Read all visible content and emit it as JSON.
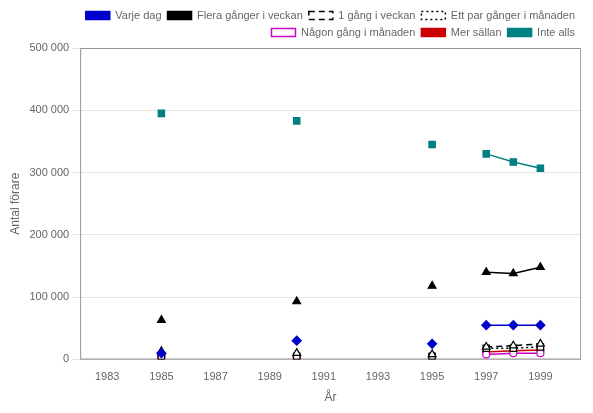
{
  "chart_data": {
    "type": "line",
    "x_label": "År",
    "y_label": "Antal förare",
    "x": [
      1985,
      1990,
      1995,
      1997,
      1998,
      1999
    ],
    "xlim": [
      1982.0,
      2000.5
    ],
    "xticks": [
      1983,
      1985,
      1987,
      1989,
      1991,
      1993,
      1995,
      1997,
      1999
    ],
    "ylim": [
      0,
      500000
    ],
    "yticks": [
      0,
      {
        "value": 100000,
        "label": "100 000"
      },
      {
        "value": 200000,
        "label": "200 000"
      },
      {
        "value": 300000,
        "label": "300 000"
      },
      {
        "value": 400000,
        "label": "400 000"
      },
      {
        "value": 500000,
        "label": "500 000"
      }
    ],
    "grid": "y",
    "legend": "upper right",
    "series": [
      {
        "type": "scatter",
        "color": "#0000CC",
        "marker": "diamond",
        "values": [
          10000,
          30000,
          25000,
          null,
          null,
          null
        ]
      },
      {
        "name": "Varje dag",
        "type": "line",
        "color": "#0000CC",
        "marker": "diamond",
        "line_style": "solid",
        "values": [
          null,
          null,
          null,
          55000,
          55000,
          55000
        ]
      },
      {
        "type": "scatter",
        "color": "#000000",
        "marker": "triangle",
        "values": [
          63000,
          93000,
          118000,
          null,
          null,
          null
        ]
      },
      {
        "name": "Flera gånger i veckan",
        "type": "line",
        "color": "#000000",
        "marker": "triangle",
        "line_style": "solid",
        "values": [
          null,
          null,
          null,
          140000,
          138000,
          148000
        ]
      },
      {
        "type": "scatter",
        "color": "#000000",
        "marker": "triangle-open",
        "values": [
          13000,
          10000,
          8000,
          null,
          null,
          null
        ]
      },
      {
        "name": "1 gång i veckan",
        "type": "line",
        "color": "#000000",
        "marker": "triangle-open",
        "line_style": "dashed",
        "values": [
          null,
          null,
          null,
          20000,
          22000,
          25000
        ]
      },
      {
        "type": "scatter",
        "color": "#000000",
        "marker": "square-open",
        "values": [
          5000,
          5000,
          5000,
          null,
          null,
          null
        ]
      },
      {
        "name": "Ett par gånger i månaden",
        "type": "line",
        "color": "#000000",
        "marker": "square-open",
        "line_style": "dotted",
        "values": [
          null,
          null,
          null,
          18000,
          18000,
          20000
        ]
      },
      {
        "type": "scatter",
        "color": "#CC00CC",
        "marker": "circle-open",
        "values": [
          5000,
          4000,
          5000,
          null,
          null,
          null
        ]
      },
      {
        "name": "Någon gång i månaden",
        "type": "line",
        "color": "#CC00CC",
        "marker": "circle-open",
        "line_style": "solid",
        "values": [
          null,
          null,
          null,
          8000,
          10000,
          10000
        ]
      },
      {
        "type": "scatter",
        "color": "#CC0000",
        "marker": "circle",
        "values": [
          5000,
          4000,
          5000,
          null,
          null,
          null
        ]
      },
      {
        "name": "Mer sällan",
        "type": "line",
        "color": "#CC0000",
        "marker": "circle",
        "line_style": "solid",
        "values": [
          null,
          null,
          null,
          12000,
          14000,
          15000
        ]
      },
      {
        "type": "scatter",
        "color": "#008080",
        "marker": "square",
        "values": [
          395000,
          383000,
          345000,
          null,
          null,
          null
        ]
      },
      {
        "name": "Inte alls",
        "type": "line",
        "color": "#008080",
        "marker": "square",
        "line_style": "solid",
        "values": [
          null,
          null,
          null,
          330000,
          317000,
          307000
        ]
      }
    ]
  }
}
